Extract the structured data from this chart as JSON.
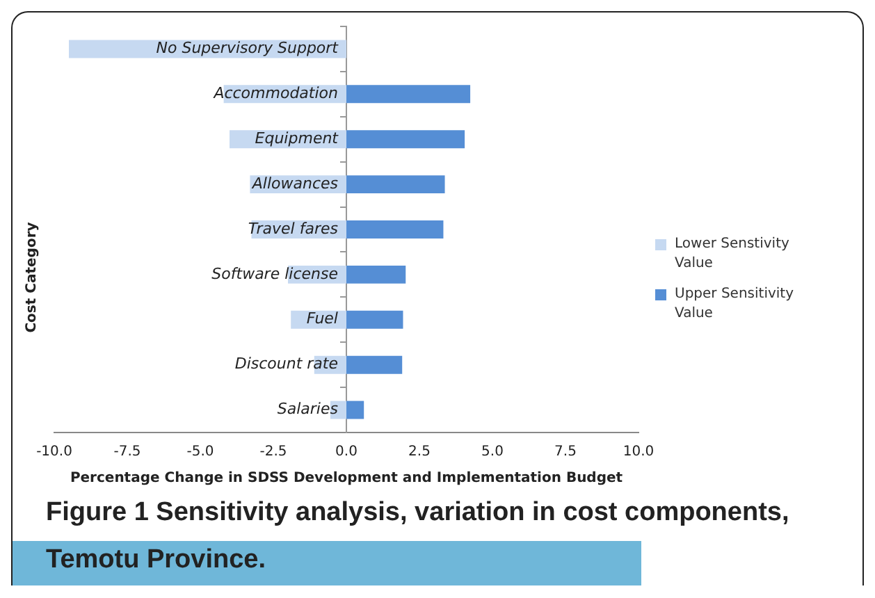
{
  "chart_data": {
    "type": "bar",
    "orientation": "horizontal",
    "title": "Figure 1 Sensitivity analysis, variation in cost components, Temotu Province.",
    "xlabel": "Percentage Change in SDSS Development and Implementation Budget",
    "ylabel": "Cost Category",
    "categories": [
      "No Supervisory Support",
      "Accommodation",
      "Equipment",
      "Allowances",
      "Travel fares",
      "Software license",
      "Fuel",
      "Discount rate",
      "Salaries"
    ],
    "series": [
      {
        "name": "Lower Senstivity Value",
        "color": "#c6d9f1",
        "values": [
          -9.5,
          -4.2,
          -4.0,
          -3.3,
          -3.25,
          -2.0,
          -1.9,
          -1.1,
          -0.55
        ]
      },
      {
        "name": "Upper Sensitivity Value",
        "color": "#558ed5",
        "values": [
          null,
          4.24,
          4.05,
          3.37,
          3.32,
          2.03,
          1.94,
          1.91,
          0.6
        ]
      }
    ],
    "xlim": [
      -10,
      10
    ],
    "xticks": [
      {
        "value": -10,
        "label": "-10.0"
      },
      {
        "value": -7.5,
        "label": "-7.5"
      },
      {
        "value": -5,
        "label": "-5.0"
      },
      {
        "value": -2.5,
        "label": "-2.5"
      },
      {
        "value": 0,
        "label": "0.0"
      },
      {
        "value": 2.5,
        "label": "2.5"
      },
      {
        "value": 5,
        "label": "5.0"
      },
      {
        "value": 7.5,
        "label": "7.5"
      },
      {
        "value": 10,
        "label": "10.0"
      }
    ],
    "grid": false,
    "legend": "right",
    "stacked": true
  }
}
